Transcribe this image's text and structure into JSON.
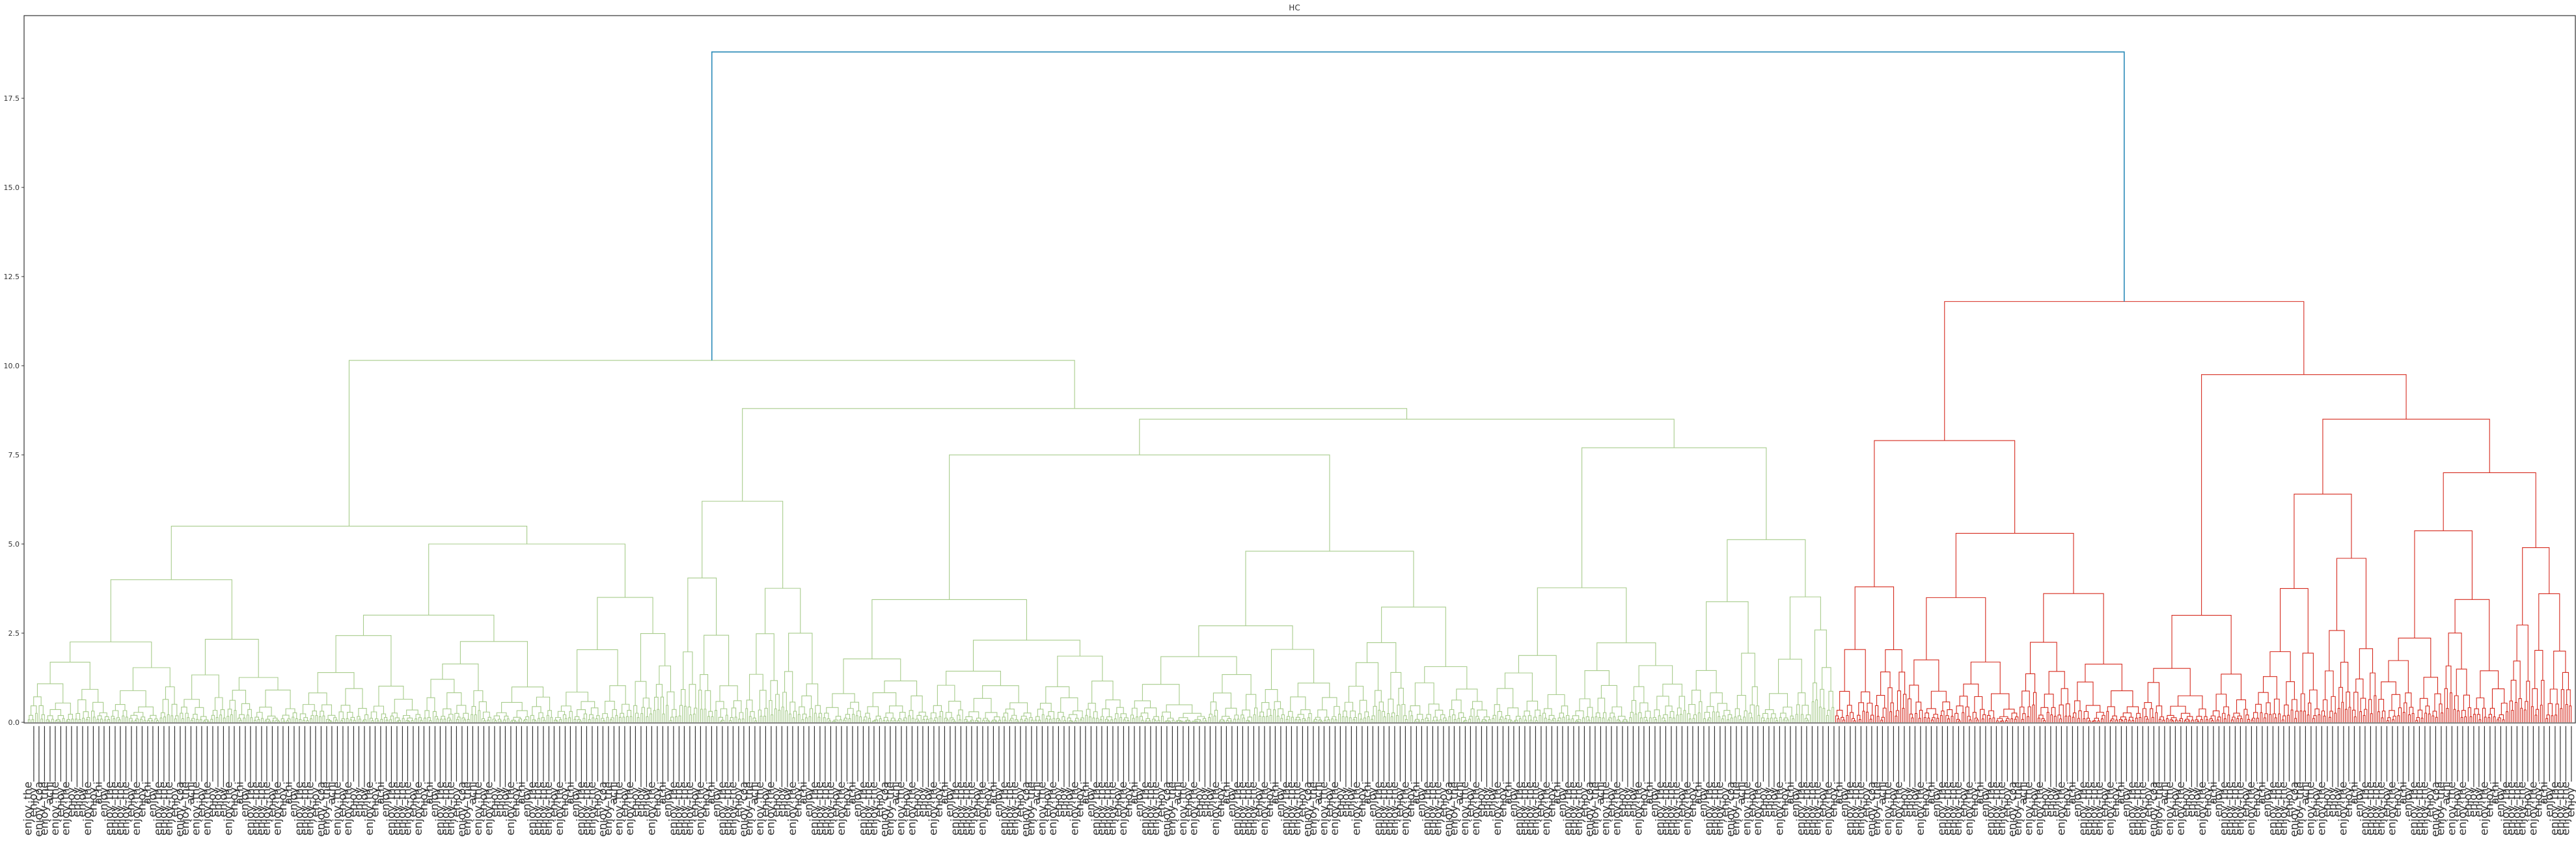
{
  "chart_data": {
    "type": "dendrogram",
    "title": "HC",
    "xlabel": "",
    "ylabel": "",
    "ylim": [
      0,
      19.8
    ],
    "yticks": [
      "0.0",
      "2.5",
      "5.0",
      "7.5",
      "10.0",
      "12.5",
      "15.0",
      "17.5"
    ],
    "ytick_values": [
      0,
      2.5,
      5,
      7.5,
      10,
      12.5,
      15,
      17.5
    ],
    "grid": false,
    "colors": {
      "green_cluster": "#a8cc8c",
      "red_cluster": "#d62b1f",
      "root": "#2a8ab8"
    },
    "leaf_count": 1408,
    "green_leaf_count": 1000,
    "red_leaf_count": 408,
    "label_prefixes": [
      "enjoy_",
      "achi"
    ],
    "visible_leaf_labels": [
      "enjoy_the",
      "enjoy_",
      "enjoy_coa",
      "enjoy_the",
      "achi",
      "enjoy_the",
      "enjoy_",
      "enjoy_the",
      "enjoy_",
      "enjoy_",
      "enjoy_",
      "enjoy_the",
      "enjoy_",
      "achi",
      "enjoy_",
      "enjoy_the",
      "enjoy_the",
      "enjoy_the",
      "enjoy_the",
      "enjoy_",
      "enjoy_the",
      "enjoy_",
      "achi",
      "enjoy_",
      "enjoy_the",
      "enjoy_the"
    ],
    "merges": [
      {
        "id": "root",
        "height": 18.8,
        "children": [
          "green_top",
          "red_top"
        ],
        "color": "root"
      },
      {
        "id": "green_top",
        "height": 10.15,
        "children": [
          "g_left",
          "g_right"
        ],
        "color": "green_cluster"
      },
      {
        "id": "g_left",
        "height": 5.5,
        "children": [
          "gl_a",
          "gl_b"
        ],
        "color": "green_cluster"
      },
      {
        "id": "gl_a",
        "height": 4.0,
        "color": "green_cluster"
      },
      {
        "id": "gl_b",
        "height": 5.0,
        "color": "green_cluster"
      },
      {
        "id": "g_right",
        "height": 8.8,
        "children": [
          "gr_a",
          "gr_b"
        ],
        "color": "green_cluster"
      },
      {
        "id": "gr_a",
        "height": 6.2,
        "color": "green_cluster"
      },
      {
        "id": "gr_b",
        "height": 8.5,
        "children": [
          "gr_b1",
          "gr_b2"
        ],
        "color": "green_cluster"
      },
      {
        "id": "gr_b1",
        "height": 7.5,
        "color": "green_cluster"
      },
      {
        "id": "gr_b2",
        "height": 7.7,
        "color": "green_cluster"
      },
      {
        "id": "red_top",
        "height": 11.8,
        "children": [
          "r_left",
          "r_right"
        ],
        "color": "red_cluster"
      },
      {
        "id": "r_left",
        "height": 7.9,
        "children": [
          "rl_a",
          "rl_b"
        ],
        "color": "red_cluster"
      },
      {
        "id": "rl_a",
        "height": 3.8,
        "color": "red_cluster"
      },
      {
        "id": "rl_b",
        "height": 5.3,
        "color": "red_cluster"
      },
      {
        "id": "r_right",
        "height": 9.75,
        "children": [
          "rr_a",
          "rr_b"
        ],
        "color": "red_cluster"
      },
      {
        "id": "rr_a",
        "height": 3.0,
        "color": "red_cluster"
      },
      {
        "id": "rr_b",
        "height": 8.5,
        "children": [
          "rr_b1",
          "rr_b2"
        ],
        "color": "red_cluster"
      },
      {
        "id": "rr_b1",
        "height": 6.4,
        "color": "red_cluster"
      },
      {
        "id": "rr_b2",
        "height": 7.0,
        "color": "red_cluster"
      }
    ]
  }
}
